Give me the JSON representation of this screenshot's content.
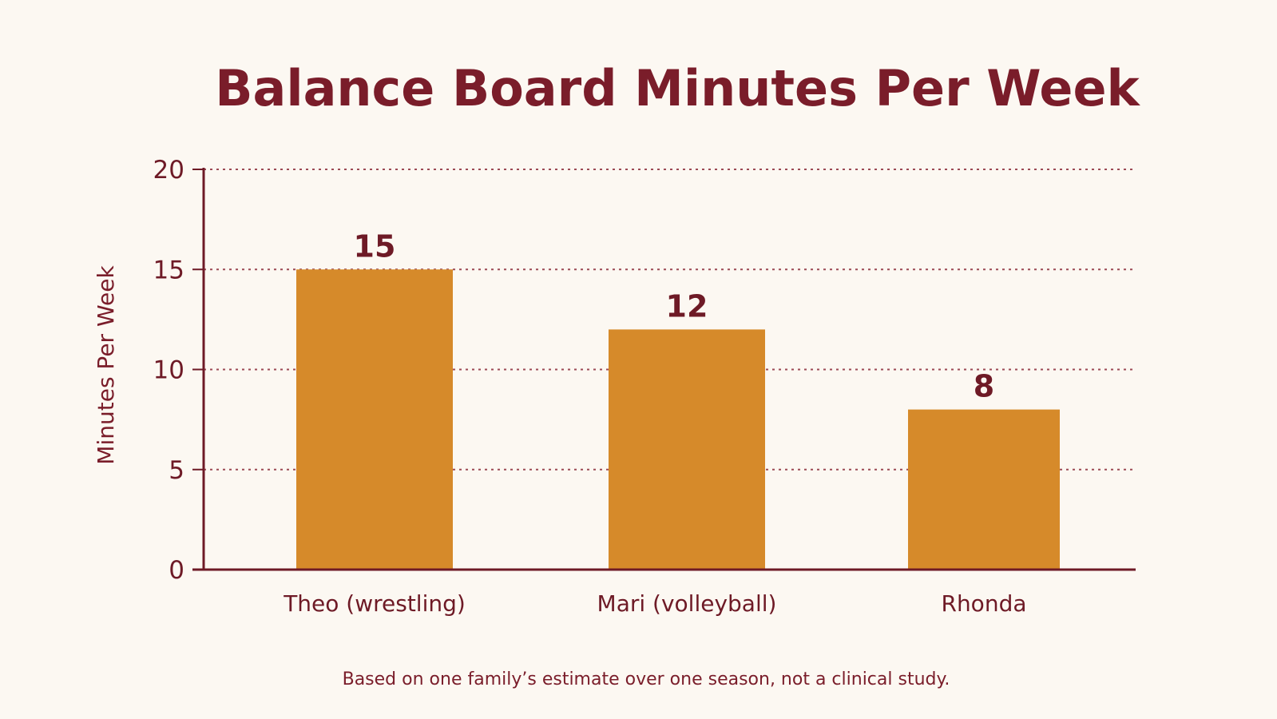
{
  "chart_data": {
    "type": "bar",
    "title": "Balance Board Minutes Per Week",
    "ylabel": "Minutes Per Week",
    "xlabel": "",
    "categories": [
      "Theo (wrestling)",
      "Mari (volleyball)",
      "Rhonda"
    ],
    "values": [
      15,
      12,
      8
    ],
    "data_labels": [
      "15",
      "12",
      "8"
    ],
    "ylim": [
      0,
      20
    ],
    "yticks": [
      0,
      5,
      10,
      15,
      20
    ],
    "grid": true,
    "legend": "none",
    "bar_color": "#d68a2a",
    "text_color": "#7a1d2a",
    "footnote": "Based on one family’s estimate over one season, not a clinical study."
  }
}
